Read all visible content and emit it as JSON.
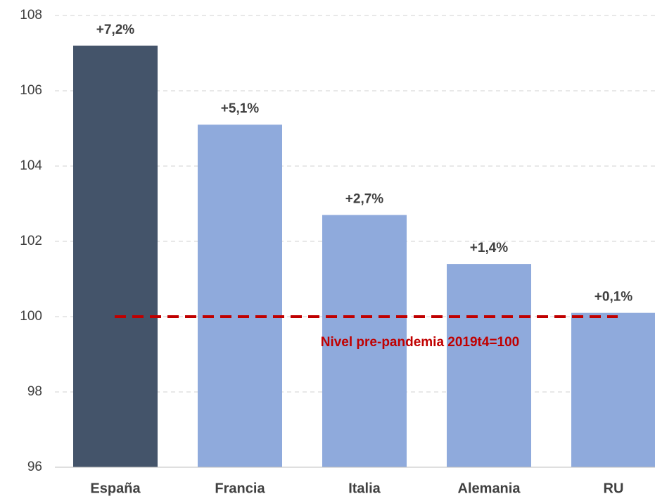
{
  "chart_data": {
    "type": "bar",
    "categories": [
      "España",
      "Francia",
      "Italia",
      "Alemania",
      "RU"
    ],
    "values": [
      107.2,
      105.1,
      102.7,
      101.4,
      100.1
    ],
    "value_labels": [
      "+7,2%",
      "+5,1%",
      "+2,7%",
      "+1,4%",
      "+0,1%"
    ],
    "colors": [
      "#44546a",
      "#8faadc",
      "#8faadc",
      "#8faadc",
      "#8faadc"
    ],
    "ylim": [
      96,
      108
    ],
    "yticks": [
      96,
      98,
      100,
      102,
      104,
      106,
      108
    ],
    "grid": true,
    "reference_line": {
      "value": 100,
      "label": "Nivel pre-pandemia 2019t4=100",
      "color": "#c00000"
    }
  }
}
